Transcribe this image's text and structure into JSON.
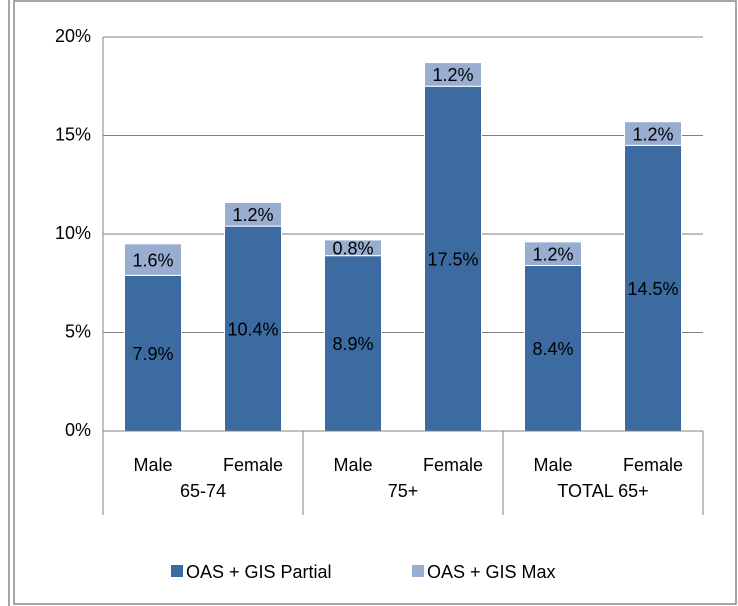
{
  "chart_data": {
    "type": "stacked_bar",
    "categories": [
      "Male",
      "Female",
      "Male",
      "Female",
      "Male",
      "Female"
    ],
    "groups": [
      "65-74",
      "75+",
      "TOTAL 65+"
    ],
    "series": [
      {
        "name": "OAS + GIS Partial",
        "color": "#3b6ba0",
        "values": [
          7.9,
          10.4,
          8.9,
          17.5,
          8.4,
          14.5
        ],
        "value_labels": [
          "7.9%",
          "10.4%",
          "8.9%",
          "17.5%",
          "8.4%",
          "14.5%"
        ]
      },
      {
        "name": "OAS + GIS Max",
        "color": "#98add0",
        "values": [
          1.6,
          1.2,
          0.8,
          1.2,
          1.2,
          1.2
        ],
        "value_labels": [
          "1.6%",
          "1.2%",
          "0.8%",
          "1.2%",
          "1.2%",
          "1.2%"
        ]
      }
    ],
    "ylim": [
      0,
      20
    ],
    "yticks": [
      {
        "value": 0,
        "label": "0%"
      },
      {
        "value": 5,
        "label": "5%"
      },
      {
        "value": 10,
        "label": "10%"
      },
      {
        "value": 15,
        "label": "15%"
      },
      {
        "value": 20,
        "label": "20%"
      }
    ],
    "grid": true,
    "legend": "bottom"
  }
}
